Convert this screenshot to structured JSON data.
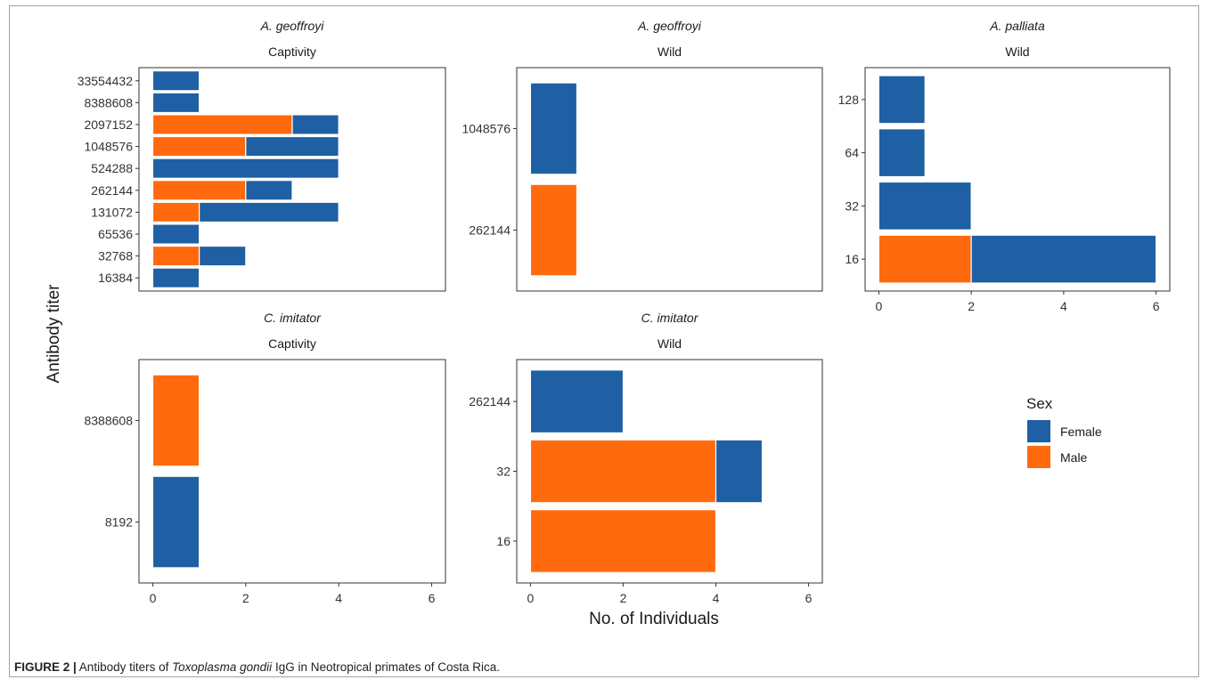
{
  "figure": {
    "ylabel": "Antibody titer",
    "xlabel": "No. of Individuals",
    "caption": {
      "label": "FIGURE 2 |",
      "text_before": " Antibody titers of ",
      "species_italic": "Toxoplasma gondii",
      "text_after": " IgG in Neotropical primates of Costa Rica."
    }
  },
  "legend": {
    "title": "Sex",
    "items": [
      {
        "label": "Female",
        "color": "#1f5fa3"
      },
      {
        "label": "Male",
        "color": "#ff6a0f"
      }
    ]
  },
  "chart_data": [
    {
      "type": "bar",
      "orientation": "horizontal",
      "stacked": true,
      "species": "A. geoffroyi",
      "setting": "Captivity",
      "categories": [
        "16384",
        "32768",
        "65536",
        "131072",
        "262144",
        "524288",
        "1048576",
        "2097152",
        "8388608",
        "33554432"
      ],
      "series": [
        {
          "name": "Male",
          "values": [
            0,
            1,
            0,
            1,
            2,
            0,
            2,
            3,
            0,
            0
          ]
        },
        {
          "name": "Female",
          "values": [
            1,
            1,
            1,
            3,
            1,
            4,
            2,
            1,
            1,
            1
          ]
        }
      ],
      "xlim": [
        0,
        6
      ],
      "xticks": [
        "0",
        "2",
        "4",
        "6"
      ],
      "show_xaxis": false
    },
    {
      "type": "bar",
      "orientation": "horizontal",
      "stacked": true,
      "species": "A. geoffroyi",
      "setting": "Wild",
      "categories": [
        "262144",
        "1048576"
      ],
      "series": [
        {
          "name": "Male",
          "values": [
            1,
            0
          ]
        },
        {
          "name": "Female",
          "values": [
            0,
            1
          ]
        }
      ],
      "xlim": [
        0,
        6
      ],
      "xticks": [
        "0",
        "2",
        "4",
        "6"
      ],
      "show_xaxis": false
    },
    {
      "type": "bar",
      "orientation": "horizontal",
      "stacked": true,
      "species": "A. palliata",
      "setting": "Wild",
      "categories": [
        "16",
        "32",
        "64",
        "128"
      ],
      "series": [
        {
          "name": "Male",
          "values": [
            2,
            0,
            0,
            0
          ]
        },
        {
          "name": "Female",
          "values": [
            4,
            2,
            1,
            1
          ]
        }
      ],
      "xlim": [
        0,
        6
      ],
      "xticks": [
        "0",
        "2",
        "4",
        "6"
      ],
      "show_xaxis": true
    },
    {
      "type": "bar",
      "orientation": "horizontal",
      "stacked": true,
      "species": "C. imitator",
      "setting": "Captivity",
      "categories": [
        "8192",
        "8388608"
      ],
      "series": [
        {
          "name": "Male",
          "values": [
            0,
            1
          ]
        },
        {
          "name": "Female",
          "values": [
            1,
            0
          ]
        }
      ],
      "xlim": [
        0,
        6
      ],
      "xticks": [
        "0",
        "2",
        "4",
        "6"
      ],
      "show_xaxis": true
    },
    {
      "type": "bar",
      "orientation": "horizontal",
      "stacked": true,
      "species": "C. imitator",
      "setting": "Wild",
      "categories": [
        "16",
        "32",
        "262144"
      ],
      "series": [
        {
          "name": "Male",
          "values": [
            4,
            4,
            0
          ]
        },
        {
          "name": "Female",
          "values": [
            0,
            1,
            2
          ]
        }
      ],
      "xlim": [
        0,
        6
      ],
      "xticks": [
        "0",
        "2",
        "4",
        "6"
      ],
      "show_xaxis": true
    }
  ]
}
